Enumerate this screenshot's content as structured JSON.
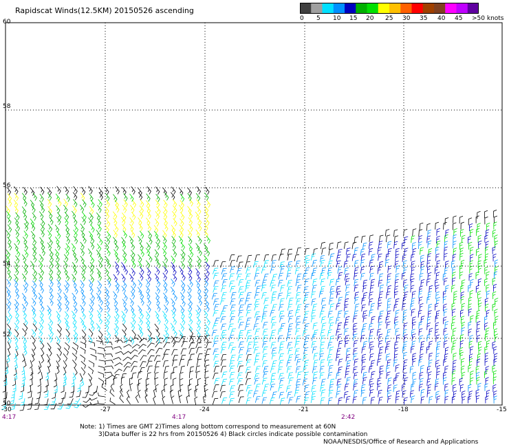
{
  "title": "Rapidscat Winds(12.5KM) 20150526 ascending",
  "legend": {
    "colors": [
      "#404040",
      "#a0a0a0",
      "#00e0ff",
      "#0090ff",
      "#0000c0",
      "#00b000",
      "#00e000",
      "#ffff00",
      "#ffc000",
      "#ff6000",
      "#ff0000",
      "#a04000",
      "#804020",
      "#ff00ff",
      "#c000ff",
      "#6000a0"
    ],
    "labels": [
      "0",
      "5",
      "10",
      "15",
      "20",
      "25",
      "30",
      "35",
      "40",
      "45",
      ">50 knots"
    ]
  },
  "axes": {
    "lon_ticks": [
      "-30",
      "-27",
      "-24",
      "-21",
      "-18",
      "-15"
    ],
    "lat_ticks": [
      "60",
      "58",
      "56",
      "54",
      "52",
      "50"
    ]
  },
  "times": [
    "4:17",
    "4:17",
    "2:42"
  ],
  "notes": {
    "line1": "Note: 1) Times are GMT 2)Times along bottom correspond to measurement at 60N",
    "line2": "3)Data buffer is 22 hrs from 20150526 4) Black circles indicate possible contamination",
    "credit": "NOAA/NESDIS/Office of Research and Applications"
  }
}
